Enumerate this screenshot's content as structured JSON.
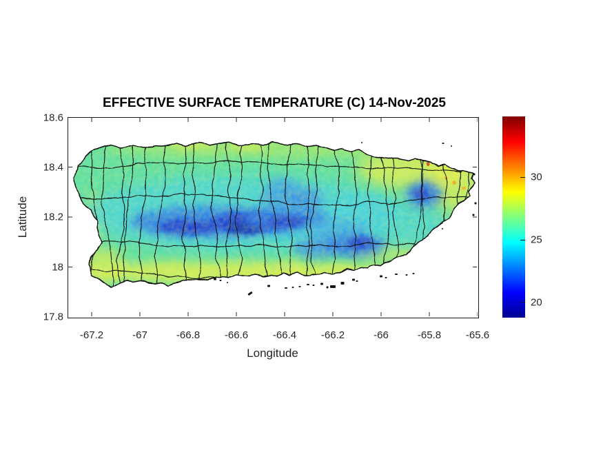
{
  "figure": {
    "title": "EFFECTIVE SURFACE TEMPERATURE (C) 14-Nov-2025"
  },
  "axes": {
    "xlabel": "Longitude",
    "ylabel": "Latitude",
    "x_ticks": [
      "-67.2",
      "-67",
      "-66.8",
      "-66.6",
      "-66.4",
      "-66.2",
      "-66",
      "-65.8",
      "-65.6"
    ],
    "y_ticks": [
      "18.6",
      "18.4",
      "18.2",
      "18",
      "17.8"
    ],
    "xlim": [
      -67.3,
      -65.6
    ],
    "ylim": [
      17.8,
      18.6
    ]
  },
  "colorbar": {
    "tick_labels": [
      "30",
      "25",
      "20"
    ],
    "tick_values": [
      30,
      25,
      20
    ],
    "value_range": [
      18.7,
      34.9
    ],
    "colormap": "jet",
    "colormap_hex_bottom_to_top": [
      "#00008f",
      "#0000ff",
      "#00ffff",
      "#80ff80",
      "#ffff00",
      "#ff0000",
      "#800000"
    ]
  },
  "chart_data": {
    "type": "heatmap",
    "title": "EFFECTIVE SURFACE TEMPERATURE (C) 14-Nov-2025",
    "xlabel": "Longitude",
    "ylabel": "Latitude",
    "xlim": [
      -67.3,
      -65.6
    ],
    "ylim": [
      17.8,
      18.6
    ],
    "x_tick_values": [
      -67.2,
      -67.0,
      -66.8,
      -66.6,
      -66.4,
      -66.2,
      -66.0,
      -65.8,
      -65.6
    ],
    "y_tick_values": [
      18.6,
      18.4,
      18.2,
      18.0,
      17.8
    ],
    "colorbar_range_c": [
      18.7,
      34.9
    ],
    "colorbar_ticks_c": [
      20,
      25,
      30
    ],
    "colormap": "jet",
    "map_region": "Puerto Rico main island with municipality boundaries drawn in black",
    "grid": false,
    "legend": "colorbar right of axes",
    "surface_summary": [
      {
        "feature": "cordillera-central-ridge",
        "lon": [
          -66.95,
          -66.25
        ],
        "lat": [
          18.05,
          18.25
        ],
        "temp_c": [
          19,
          23
        ],
        "color": "blue / dark blue"
      },
      {
        "feature": "north-central-highlands",
        "lon": [
          -66.8,
          -66.3
        ],
        "lat": [
          18.2,
          18.35
        ],
        "temp_c": [
          23,
          25
        ],
        "color": "cyan"
      },
      {
        "feature": "sierra-de-luquillo-el-yunque",
        "lon": [
          -65.9,
          -65.72
        ],
        "lat": [
          18.22,
          18.36
        ],
        "temp_c": [
          20,
          24
        ],
        "color": "blue spot"
      },
      {
        "feature": "southeast-sierra-de-cayey",
        "lon": [
          -66.3,
          -65.95
        ],
        "lat": [
          18.03,
          18.16
        ],
        "temp_c": [
          20,
          24
        ],
        "color": "blue blob"
      },
      {
        "feature": "south-coast-plain",
        "lon": [
          -67.2,
          -65.9
        ],
        "lat": [
          17.93,
          18.05
        ],
        "temp_c": [
          27,
          29
        ],
        "color": "yellow-green / yellow band"
      },
      {
        "feature": "north-and-east-coast",
        "lon": [
          -66.4,
          -65.6
        ],
        "lat": [
          18.3,
          18.5
        ],
        "temp_c": [
          26,
          30
        ],
        "color": "yellow with orange specks"
      },
      {
        "feature": "interior-lowlands-general",
        "lon": [
          -67.2,
          -65.7
        ],
        "lat": [
          18.0,
          18.45
        ],
        "temp_c": [
          24,
          26
        ],
        "color": "green / teal"
      }
    ]
  }
}
